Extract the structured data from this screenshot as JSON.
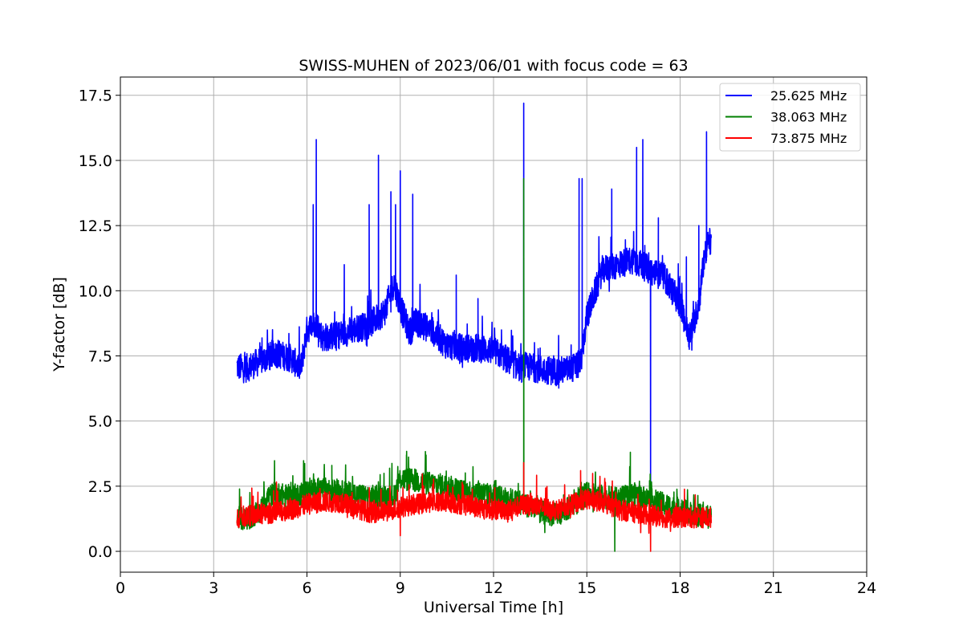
{
  "chart_data": {
    "type": "line",
    "title": "SWISS-MUHEN of 2023/06/01 with focus code = 63",
    "xlabel": "Universal Time [h]",
    "ylabel": "Y-factor [dB]",
    "xlim": [
      0,
      24
    ],
    "ylim": [
      -0.8,
      18.2
    ],
    "xticks": [
      0,
      3,
      6,
      9,
      12,
      15,
      18,
      21,
      24
    ],
    "xtick_labels": [
      "0",
      "3",
      "6",
      "9",
      "12",
      "15",
      "18",
      "21",
      "24"
    ],
    "yticks": [
      0,
      2.5,
      5,
      7.5,
      10,
      12.5,
      15,
      17.5
    ],
    "ytick_labels": [
      "0.0",
      "2.5",
      "5.0",
      "7.5",
      "10.0",
      "12.5",
      "15.0",
      "17.5"
    ],
    "grid": true,
    "legend_position": "upper right",
    "series": [
      {
        "name": "25.625 MHz",
        "color": "#0000ff",
        "points": [
          [
            3.75,
            7.1
          ],
          [
            4.0,
            7.0
          ],
          [
            4.5,
            7.3
          ],
          [
            5.0,
            7.6
          ],
          [
            5.5,
            7.4
          ],
          [
            5.8,
            7.0
          ],
          [
            6.0,
            8.5
          ],
          [
            6.3,
            8.8
          ],
          [
            6.5,
            8.2
          ],
          [
            7.0,
            8.3
          ],
          [
            7.5,
            8.5
          ],
          [
            8.0,
            8.7
          ],
          [
            8.5,
            9.2
          ],
          [
            8.8,
            10.3
          ],
          [
            9.0,
            9.4
          ],
          [
            9.3,
            8.4
          ],
          [
            9.5,
            8.8
          ],
          [
            10.0,
            8.5
          ],
          [
            10.5,
            7.9
          ],
          [
            11.0,
            7.8
          ],
          [
            11.5,
            7.8
          ],
          [
            12.0,
            7.7
          ],
          [
            12.5,
            7.3
          ],
          [
            12.9,
            7.0
          ],
          [
            13.0,
            7.1
          ],
          [
            13.5,
            7.0
          ],
          [
            14.0,
            6.9
          ],
          [
            14.5,
            7.0
          ],
          [
            14.8,
            7.2
          ],
          [
            15.0,
            9.0
          ],
          [
            15.5,
            10.8
          ],
          [
            16.0,
            11.0
          ],
          [
            16.5,
            11.2
          ],
          [
            17.0,
            10.8
          ],
          [
            17.5,
            10.5
          ],
          [
            18.0,
            9.5
          ],
          [
            18.3,
            8.2
          ],
          [
            18.6,
            9.5
          ],
          [
            18.8,
            11.5
          ],
          [
            19.0,
            12.0
          ]
        ],
        "spikes": [
          [
            6.3,
            15.8
          ],
          [
            6.2,
            13.3
          ],
          [
            8.3,
            15.2
          ],
          [
            7.2,
            11.0
          ],
          [
            8.0,
            13.3
          ],
          [
            8.7,
            13.8
          ],
          [
            8.85,
            13.3
          ],
          [
            9.0,
            14.6
          ],
          [
            9.4,
            13.7
          ],
          [
            10.8,
            10.6
          ],
          [
            12.97,
            17.2
          ],
          [
            14.75,
            14.3
          ],
          [
            14.85,
            14.3
          ],
          [
            15.8,
            13.9
          ],
          [
            16.6,
            15.5
          ],
          [
            16.8,
            15.8
          ],
          [
            17.3,
            12.8
          ],
          [
            18.2,
            11.3
          ],
          [
            18.6,
            12.5
          ],
          [
            18.85,
            16.1
          ],
          [
            17.05,
            2.3
          ],
          [
            11.5,
            9.7
          ],
          [
            13.5,
            7.8
          ]
        ]
      },
      {
        "name": "38.063 MHz",
        "color": "#008000",
        "points": [
          [
            3.75,
            1.3
          ],
          [
            4.0,
            1.2
          ],
          [
            4.5,
            1.5
          ],
          [
            4.7,
            2.1
          ],
          [
            5.0,
            2.2
          ],
          [
            5.5,
            2.1
          ],
          [
            6.0,
            2.3
          ],
          [
            6.5,
            2.4
          ],
          [
            7.0,
            2.3
          ],
          [
            7.5,
            2.2
          ],
          [
            8.0,
            2.1
          ],
          [
            8.5,
            2.1
          ],
          [
            8.8,
            2.1
          ],
          [
            9.0,
            2.8
          ],
          [
            9.5,
            2.7
          ],
          [
            10.0,
            2.6
          ],
          [
            10.5,
            2.5
          ],
          [
            11.0,
            2.3
          ],
          [
            11.5,
            2.3
          ],
          [
            12.0,
            2.1
          ],
          [
            12.5,
            2.0
          ],
          [
            13.0,
            1.8
          ],
          [
            13.5,
            1.5
          ],
          [
            14.0,
            1.4
          ],
          [
            14.5,
            1.7
          ],
          [
            15.0,
            2.2
          ],
          [
            15.5,
            2.1
          ],
          [
            16.0,
            2.0
          ],
          [
            16.5,
            2.2
          ],
          [
            17.0,
            2.0
          ],
          [
            17.5,
            1.8
          ],
          [
            18.0,
            1.6
          ],
          [
            18.5,
            1.4
          ],
          [
            19.0,
            1.3
          ]
        ],
        "spikes": [
          [
            12.97,
            14.3
          ],
          [
            16.4,
            3.8
          ],
          [
            15.9,
            0.0
          ],
          [
            9.2,
            3.7
          ],
          [
            6.8,
            3.3
          ]
        ]
      },
      {
        "name": "73.875 MHz",
        "color": "#ff0000",
        "points": [
          [
            3.75,
            1.3
          ],
          [
            4.0,
            1.35
          ],
          [
            4.5,
            1.4
          ],
          [
            5.0,
            1.5
          ],
          [
            5.5,
            1.6
          ],
          [
            6.0,
            1.8
          ],
          [
            6.5,
            1.9
          ],
          [
            7.0,
            1.9
          ],
          [
            7.5,
            1.7
          ],
          [
            8.0,
            1.5
          ],
          [
            8.5,
            1.5
          ],
          [
            9.0,
            1.7
          ],
          [
            9.5,
            1.8
          ],
          [
            10.0,
            1.9
          ],
          [
            10.5,
            1.9
          ],
          [
            11.0,
            1.8
          ],
          [
            11.5,
            1.7
          ],
          [
            12.0,
            1.6
          ],
          [
            12.5,
            1.6
          ],
          [
            13.0,
            1.8
          ],
          [
            13.5,
            1.7
          ],
          [
            14.0,
            1.6
          ],
          [
            14.5,
            1.8
          ],
          [
            15.0,
            2.0
          ],
          [
            15.5,
            1.9
          ],
          [
            16.0,
            1.6
          ],
          [
            16.5,
            1.5
          ],
          [
            17.0,
            1.4
          ],
          [
            17.5,
            1.3
          ],
          [
            18.0,
            1.3
          ],
          [
            18.5,
            1.3
          ],
          [
            19.0,
            1.3
          ]
        ],
        "spikes": [
          [
            12.97,
            3.4
          ],
          [
            17.05,
            0.0
          ],
          [
            9.0,
            0.6
          ],
          [
            14.8,
            3.1
          ]
        ]
      }
    ]
  }
}
